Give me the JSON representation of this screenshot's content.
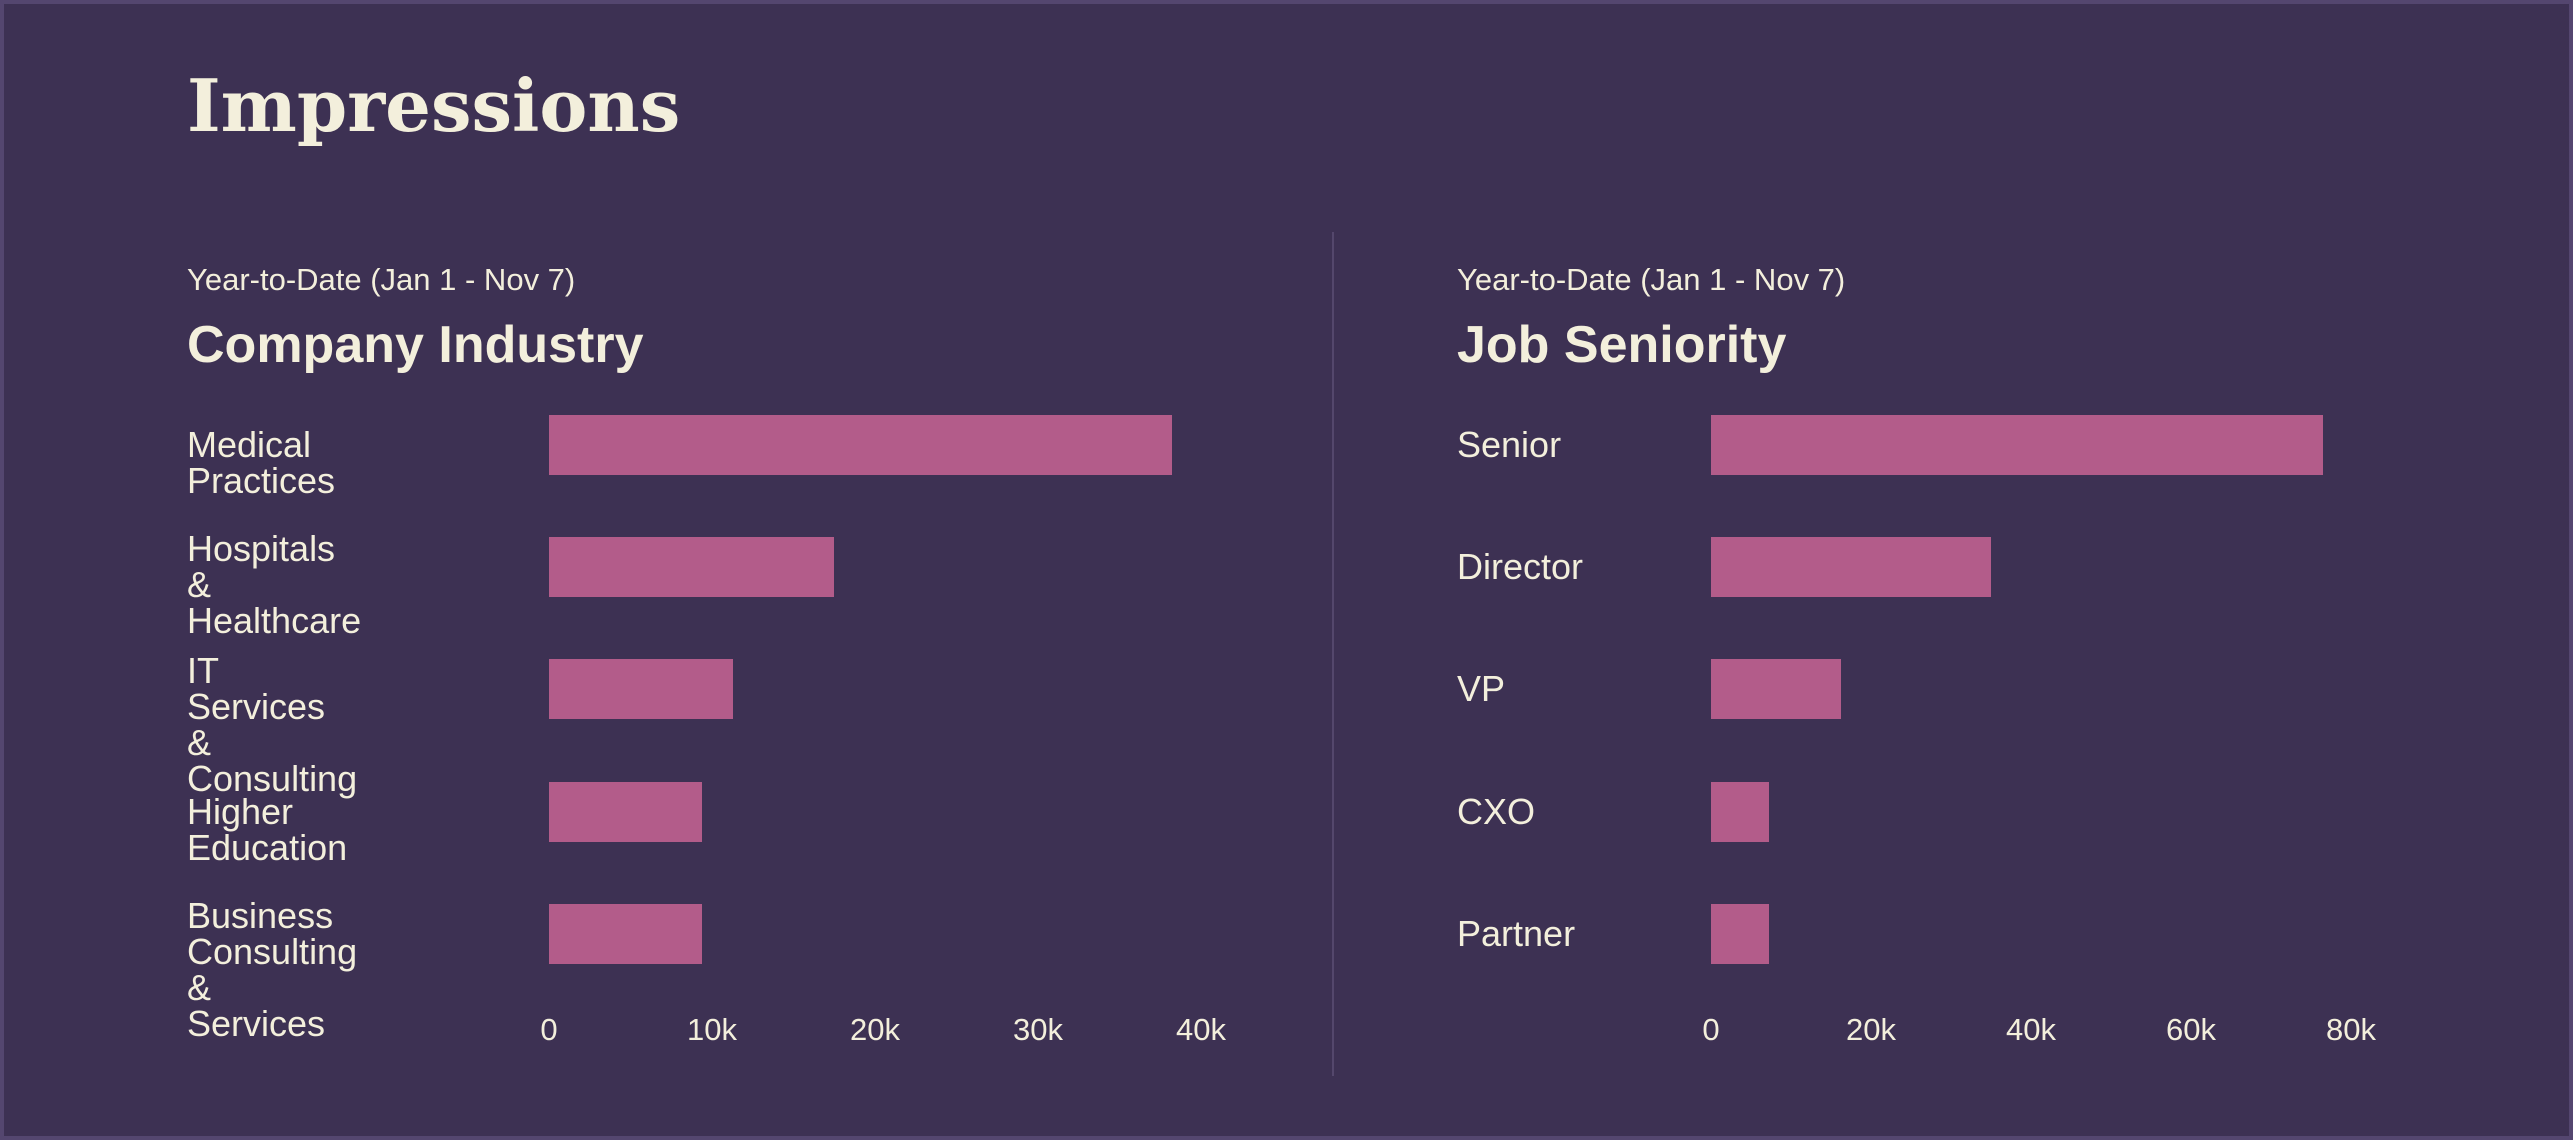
{
  "title": "Impressions",
  "colors": {
    "background": "#3d3153",
    "bar": "#b35c8a",
    "text": "#f3efdc"
  },
  "chart_data": [
    {
      "type": "bar",
      "orientation": "horizontal",
      "subtitle": "Year-to-Date (Jan 1 - Nov 7)",
      "title": "Company Industry",
      "categories": [
        "Medical Practices",
        "Hospitals & Healthcare",
        "IT Services & Consulting",
        "Higher Education",
        "Business Consulting & Services"
      ],
      "category_labels": [
        "Medical Practices",
        "Hospitals &\nHealthcare",
        "IT Services &\nConsulting",
        "Higher Education",
        "Business Consulting\n& Services"
      ],
      "values": [
        38200,
        17500,
        11300,
        9400,
        9400
      ],
      "xlim": [
        0,
        40000
      ],
      "ticks": [
        0,
        10000,
        20000,
        30000,
        40000
      ],
      "tick_labels": [
        "0",
        "10k",
        "20k",
        "30k",
        "40k"
      ],
      "grid": false,
      "legend": "none"
    },
    {
      "type": "bar",
      "orientation": "horizontal",
      "subtitle": "Year-to-Date (Jan 1 - Nov 7)",
      "title": "Job Seniority",
      "categories": [
        "Senior",
        "Director",
        "VP",
        "CXO",
        "Partner"
      ],
      "category_labels": [
        "Senior",
        "Director",
        "VP",
        "CXO",
        "Partner"
      ],
      "values": [
        76500,
        35000,
        16200,
        7200,
        7200
      ],
      "xlim": [
        0,
        80000
      ],
      "ticks": [
        0,
        20000,
        40000,
        60000,
        80000
      ],
      "tick_labels": [
        "0",
        "20k",
        "40k",
        "60k",
        "80k"
      ],
      "grid": false,
      "legend": "none"
    }
  ]
}
